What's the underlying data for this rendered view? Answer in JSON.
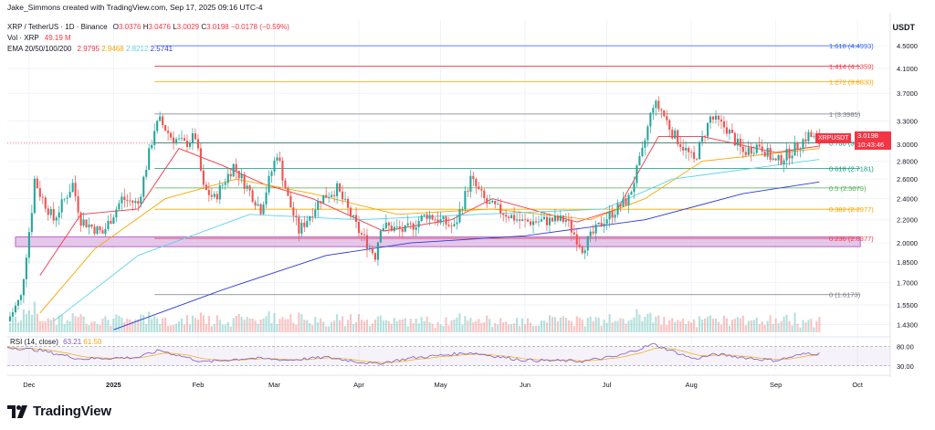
{
  "credit": "Jake_Simmons created with TradingView.com, Sep 17, 2025 09:16 UTC-4",
  "header": {
    "symbol": "XRP / TetherUS · 1D · Binance",
    "o_label": "O",
    "o_value": "3.0376",
    "h_label": "H",
    "h_value": "3.0476",
    "l_label": "L",
    "l_value": "3.0029",
    "c_label": "C",
    "c_value": "3.0198",
    "change": "−0.0178 (−0.59%)",
    "vol_label": "Vol · XRP",
    "vol_value": "49.19 M",
    "ema_label": "EMA 20/50/100/200",
    "ema_values": [
      "2.9795",
      "2.9468",
      "2.8212",
      "2.5741"
    ]
  },
  "rsi_header": {
    "label": "RSI (14, close)",
    "value_a": "63.21",
    "value_b": "61.50"
  },
  "price_axis": {
    "unit": "USDT",
    "ticks": [
      "4.5000",
      "4.1000",
      "3.7000",
      "3.3000",
      "3.0000",
      "2.8000",
      "2.6000",
      "2.4000",
      "2.2000",
      "2.0000",
      "1.8500",
      "1.7000",
      "1.5500",
      "1.4300"
    ],
    "tick_values": [
      4.5,
      4.1,
      3.7,
      3.3,
      3.0,
      2.8,
      2.6,
      2.4,
      2.2,
      2.0,
      1.85,
      1.7,
      1.55,
      1.43
    ]
  },
  "rsi_axis": {
    "ticks": [
      "80.00",
      "30.00"
    ]
  },
  "time_axis": {
    "labels": [
      "Dec",
      "2025",
      "Feb",
      "Mar",
      "Apr",
      "May",
      "Jun",
      "Jul",
      "Aug",
      "Sep",
      "Oct"
    ]
  },
  "last_price": {
    "ticker": "XRPUSDT",
    "value": "3.0198",
    "countdown": "10:43:46"
  },
  "logo_text": "TradingView",
  "colors": {
    "up": "#26a69a",
    "down": "#ef5350",
    "ema20": "#f23645",
    "ema50": "#f7a600",
    "ema100": "#5bd4ea",
    "ema200": "#2e3bd5",
    "zone": "#e1bee7",
    "zone_border": "#9c27b0"
  },
  "chart_data": {
    "type": "candlestick",
    "title": "XRP / TetherUS · 1D · Binance",
    "ylabel": "USDT",
    "yscale": "log",
    "ylim": [
      1.38,
      5.0
    ],
    "x_range": [
      "2024-11-23",
      "2025-10-13"
    ],
    "fib_levels": [
      {
        "label": "1.618 (4.4993)",
        "ratio": 1.618,
        "value": 4.4993,
        "color": "#2962ff"
      },
      {
        "label": "1.414 (4.1359)",
        "ratio": 1.414,
        "value": 4.1359,
        "color": "#f23645"
      },
      {
        "label": "1.272 (3.8830)",
        "ratio": 1.272,
        "value": 3.883,
        "color": "#f7a600"
      },
      {
        "label": "1 (3.3985)",
        "ratio": 1,
        "value": 3.3985,
        "color": "#787b86"
      },
      {
        "label": "0.786 (3.0174)",
        "ratio": 0.786,
        "value": 3.0174,
        "color": "#089981"
      },
      {
        "label": "0.618 (2.7181)",
        "ratio": 0.618,
        "value": 2.7181,
        "color": "#089981"
      },
      {
        "label": "0.5 (2.5079)",
        "ratio": 0.5,
        "value": 2.5079,
        "color": "#4caf50"
      },
      {
        "label": "0.382 (2.2977)",
        "ratio": 0.382,
        "value": 2.2977,
        "color": "#f7a600"
      },
      {
        "label": "0.236 (2.0377)",
        "ratio": 0.236,
        "value": 2.0377,
        "color": "#f23645"
      },
      {
        "label": "0 (1.6173)",
        "ratio": 0,
        "value": 1.6173,
        "color": "#787b86"
      }
    ],
    "support_zone": {
      "low": 1.97,
      "high": 2.05,
      "from": "2024-11-26",
      "to": "2025-10-02"
    },
    "price_path": [
      [
        "2024-11-23",
        1.45
      ],
      [
        "2024-11-28",
        1.6
      ],
      [
        "2024-12-02",
        2.3
      ],
      [
        "2024-12-03",
        2.6
      ],
      [
        "2024-12-05",
        2.45
      ],
      [
        "2024-12-10",
        2.2
      ],
      [
        "2024-12-17",
        2.55
      ],
      [
        "2024-12-20",
        2.2
      ],
      [
        "2024-12-28",
        2.08
      ],
      [
        "2025-01-04",
        2.4
      ],
      [
        "2025-01-10",
        2.35
      ],
      [
        "2025-01-16",
        3.2
      ],
      [
        "2025-01-18",
        3.3
      ],
      [
        "2025-01-22",
        3.1
      ],
      [
        "2025-01-27",
        3.0
      ],
      [
        "2025-01-31",
        3.1
      ],
      [
        "2025-02-03",
        2.5
      ],
      [
        "2025-02-07",
        2.4
      ],
      [
        "2025-02-14",
        2.75
      ],
      [
        "2025-02-24",
        2.3
      ],
      [
        "2025-03-02",
        2.9
      ],
      [
        "2025-03-06",
        2.4
      ],
      [
        "2025-03-10",
        2.1
      ],
      [
        "2025-03-18",
        2.4
      ],
      [
        "2025-03-24",
        2.5
      ],
      [
        "2025-04-01",
        2.1
      ],
      [
        "2025-04-07",
        1.9
      ],
      [
        "2025-04-09",
        2.15
      ],
      [
        "2025-04-18",
        2.1
      ],
      [
        "2025-04-26",
        2.25
      ],
      [
        "2025-05-06",
        2.13
      ],
      [
        "2025-05-12",
        2.6
      ],
      [
        "2025-05-18",
        2.35
      ],
      [
        "2025-05-31",
        2.18
      ],
      [
        "2025-06-16",
        2.2
      ],
      [
        "2025-06-22",
        1.96
      ],
      [
        "2025-06-30",
        2.2
      ],
      [
        "2025-07-09",
        2.4
      ],
      [
        "2025-07-14",
        2.9
      ],
      [
        "2025-07-18",
        3.55
      ],
      [
        "2025-07-21",
        3.45
      ],
      [
        "2025-07-25",
        3.15
      ],
      [
        "2025-08-02",
        2.8
      ],
      [
        "2025-08-08",
        3.35
      ],
      [
        "2025-08-14",
        3.2
      ],
      [
        "2025-08-20",
        2.9
      ],
      [
        "2025-08-26",
        3.0
      ],
      [
        "2025-09-01",
        2.78
      ],
      [
        "2025-09-08",
        2.95
      ],
      [
        "2025-09-13",
        3.12
      ],
      [
        "2025-09-17",
        3.0198
      ]
    ],
    "ema_series": [
      {
        "name": "EMA 20",
        "color": "#f23645",
        "points": [
          [
            "2024-12-05",
            1.75
          ],
          [
            "2024-12-20",
            2.25
          ],
          [
            "2025-01-10",
            2.3
          ],
          [
            "2025-01-25",
            2.95
          ],
          [
            "2025-02-10",
            2.75
          ],
          [
            "2025-02-25",
            2.55
          ],
          [
            "2025-03-15",
            2.4
          ],
          [
            "2025-04-10",
            2.1
          ],
          [
            "2025-05-05",
            2.2
          ],
          [
            "2025-05-20",
            2.4
          ],
          [
            "2025-06-20",
            2.18
          ],
          [
            "2025-07-05",
            2.3
          ],
          [
            "2025-07-20",
            3.1
          ],
          [
            "2025-08-05",
            3.1
          ],
          [
            "2025-09-01",
            2.9
          ],
          [
            "2025-09-17",
            2.98
          ]
        ]
      },
      {
        "name": "EMA 50",
        "color": "#f7a600",
        "points": [
          [
            "2024-12-05",
            1.5
          ],
          [
            "2024-12-25",
            1.95
          ],
          [
            "2025-01-20",
            2.4
          ],
          [
            "2025-02-15",
            2.6
          ],
          [
            "2025-03-15",
            2.45
          ],
          [
            "2025-04-15",
            2.25
          ],
          [
            "2025-05-20",
            2.3
          ],
          [
            "2025-06-25",
            2.2
          ],
          [
            "2025-07-15",
            2.4
          ],
          [
            "2025-08-05",
            2.8
          ],
          [
            "2025-09-17",
            2.95
          ]
        ]
      },
      {
        "name": "EMA 100",
        "color": "#5bd4ea",
        "points": [
          [
            "2024-12-10",
            1.45
          ],
          [
            "2025-01-10",
            1.9
          ],
          [
            "2025-02-20",
            2.25
          ],
          [
            "2025-04-01",
            2.2
          ],
          [
            "2025-05-15",
            2.25
          ],
          [
            "2025-06-30",
            2.3
          ],
          [
            "2025-07-25",
            2.6
          ],
          [
            "2025-09-17",
            2.82
          ]
        ]
      },
      {
        "name": "EMA 200",
        "color": "#2e3bd5",
        "points": [
          [
            "2025-01-01",
            1.4
          ],
          [
            "2025-02-10",
            1.65
          ],
          [
            "2025-03-20",
            1.9
          ],
          [
            "2025-04-20",
            2.0
          ],
          [
            "2025-06-01",
            2.06
          ],
          [
            "2025-07-15",
            2.2
          ],
          [
            "2025-08-20",
            2.45
          ],
          [
            "2025-09-17",
            2.57
          ]
        ]
      }
    ],
    "rsi": {
      "name": "RSI (14, close)",
      "levels": [
        80,
        30
      ],
      "points": [
        [
          "2024-11-23",
          78
        ],
        [
          "2024-12-05",
          70
        ],
        [
          "2024-12-20",
          48
        ],
        [
          "2025-01-10",
          52
        ],
        [
          "2025-01-18",
          70
        ],
        [
          "2025-02-03",
          40
        ],
        [
          "2025-02-20",
          50
        ],
        [
          "2025-03-06",
          45
        ],
        [
          "2025-03-20",
          52
        ],
        [
          "2025-04-07",
          35
        ],
        [
          "2025-04-20",
          50
        ],
        [
          "2025-05-12",
          64
        ],
        [
          "2025-05-31",
          45
        ],
        [
          "2025-06-22",
          42
        ],
        [
          "2025-07-05",
          55
        ],
        [
          "2025-07-18",
          86
        ],
        [
          "2025-08-02",
          48
        ],
        [
          "2025-08-10",
          60
        ],
        [
          "2025-08-26",
          47
        ],
        [
          "2025-09-01",
          44
        ],
        [
          "2025-09-13",
          63
        ],
        [
          "2025-09-17",
          61
        ]
      ]
    }
  }
}
